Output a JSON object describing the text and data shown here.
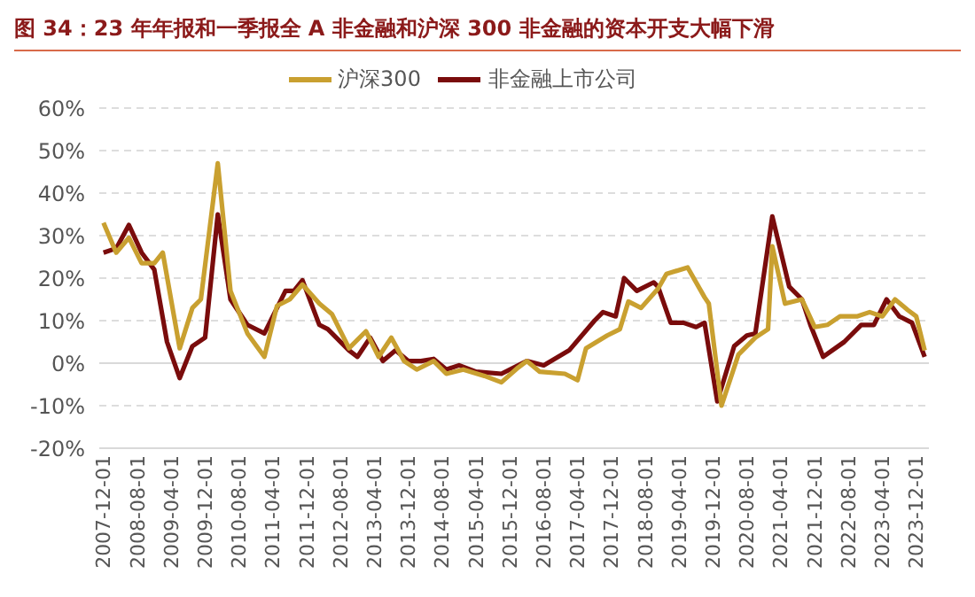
{
  "chart_data": {
    "type": "line",
    "title": "图 34：23 年年报和一季报全 A 非金融和沪深 300 非金融的资本开支大幅下滑",
    "series": [
      {
        "name": "非金融上市公司",
        "color": "#7a0c0c",
        "x": [
          "2007-12",
          "2008-03",
          "2008-06",
          "2008-09",
          "2008-12",
          "2009-03",
          "2009-06",
          "2009-09",
          "2009-12",
          "2010-03",
          "2010-06",
          "2010-10",
          "2011-02",
          "2011-07",
          "2011-09",
          "2011-11",
          "2012-03",
          "2012-05",
          "2012-10",
          "2012-12",
          "2013-03",
          "2013-06",
          "2013-09",
          "2013-12",
          "2014-03",
          "2014-06",
          "2014-09",
          "2014-12",
          "2015-04",
          "2015-10",
          "2016-04",
          "2016-08",
          "2017-02",
          "2017-08",
          "2017-10",
          "2018-01",
          "2018-03",
          "2018-06",
          "2018-10",
          "2018-11",
          "2019-02",
          "2019-05",
          "2019-08",
          "2019-10",
          "2020-01",
          "2020-05",
          "2020-08",
          "2020-10",
          "2021-02",
          "2021-06",
          "2021-09",
          "2021-11",
          "2022-02",
          "2022-07",
          "2022-11",
          "2023-02",
          "2023-05",
          "2023-08",
          "2023-11",
          "2024-02"
        ],
        "values": [
          26,
          27,
          32.5,
          26,
          22,
          5,
          -3.5,
          4,
          6,
          35,
          15,
          9,
          7,
          17,
          17,
          19.5,
          9,
          8,
          3,
          1.5,
          6,
          0.5,
          3,
          0.5,
          0.5,
          1,
          -1.5,
          -0.5,
          -2,
          -2.5,
          0.5,
          -0.5,
          3,
          10,
          12,
          11,
          20,
          17,
          19,
          18,
          9.5,
          9.5,
          8.5,
          9.5,
          -9,
          4,
          6.5,
          7,
          34.5,
          18,
          15,
          9,
          1.5,
          5,
          9,
          9,
          15,
          11,
          9.5,
          1.5
        ]
      },
      {
        "name": "沪深300",
        "color": "#c9a030",
        "x": [
          "2007-12",
          "2008-03",
          "2008-06",
          "2008-09",
          "2008-12",
          "2009-02",
          "2009-06",
          "2009-09",
          "2009-11",
          "2010-03",
          "2010-06",
          "2010-10",
          "2011-02",
          "2011-05",
          "2011-08",
          "2011-11",
          "2012-03",
          "2012-06",
          "2012-10",
          "2013-02",
          "2013-05",
          "2013-08",
          "2013-11",
          "2014-02",
          "2014-06",
          "2014-09",
          "2015-01",
          "2015-06",
          "2015-10",
          "2016-02",
          "2016-04",
          "2016-07",
          "2017-01",
          "2017-04",
          "2017-06",
          "2017-11",
          "2018-02",
          "2018-04",
          "2018-07",
          "2018-11",
          "2019-01",
          "2019-06",
          "2019-10",
          "2019-11",
          "2020-02",
          "2020-06",
          "2020-10",
          "2021-01",
          "2021-02",
          "2021-05",
          "2021-09",
          "2021-12",
          "2022-03",
          "2022-06",
          "2022-10",
          "2023-01",
          "2023-04",
          "2023-07",
          "2023-10",
          "2023-12",
          "2024-02"
        ],
        "values": [
          33,
          26,
          29.5,
          23.5,
          23.5,
          26,
          3.5,
          13,
          15,
          47,
          17,
          7,
          1.5,
          13.5,
          15,
          18.5,
          14,
          11.5,
          3.5,
          7.5,
          1.5,
          6,
          0.5,
          -1.5,
          0.5,
          -2.5,
          -1.5,
          -3,
          -4.5,
          -1,
          0.5,
          -2,
          -2.5,
          -4,
          3.5,
          6.5,
          8,
          14.5,
          13,
          17.5,
          21,
          22.5,
          15.5,
          14,
          -10,
          2,
          6,
          8,
          27.5,
          14,
          15,
          8.5,
          9,
          11,
          11,
          12,
          11,
          15,
          12.5,
          11,
          3
        ]
      }
    ],
    "xlim": [
      "2007-11-01",
      "2024-03-01"
    ],
    "xticks": [
      "2007-12-01",
      "2008-08-01",
      "2009-04-01",
      "2009-12-01",
      "2010-08-01",
      "2011-04-01",
      "2011-12-01",
      "2012-08-01",
      "2013-04-01",
      "2013-12-01",
      "2014-08-01",
      "2015-04-01",
      "2015-12-01",
      "2016-08-01",
      "2017-04-01",
      "2017-12-01",
      "2018-08-01",
      "2019-04-01",
      "2019-12-01",
      "2020-08-01",
      "2021-04-01",
      "2021-12-01",
      "2022-08-01",
      "2023-04-01",
      "2023-12-01"
    ],
    "ylim": [
      -20,
      60
    ],
    "yticks": [
      {
        "value": -20,
        "label": "-20%"
      },
      {
        "value": -10,
        "label": "-10%"
      },
      {
        "value": 0,
        "label": "0%"
      },
      {
        "value": 10,
        "label": "10%"
      },
      {
        "value": 20,
        "label": "20%"
      },
      {
        "value": 30,
        "label": "30%"
      },
      {
        "value": 40,
        "label": "40%"
      },
      {
        "value": 50,
        "label": "50%"
      },
      {
        "value": 60,
        "label": "60%"
      }
    ],
    "grid": "y",
    "legend": "top",
    "marker": "none",
    "line_style": "solid"
  }
}
